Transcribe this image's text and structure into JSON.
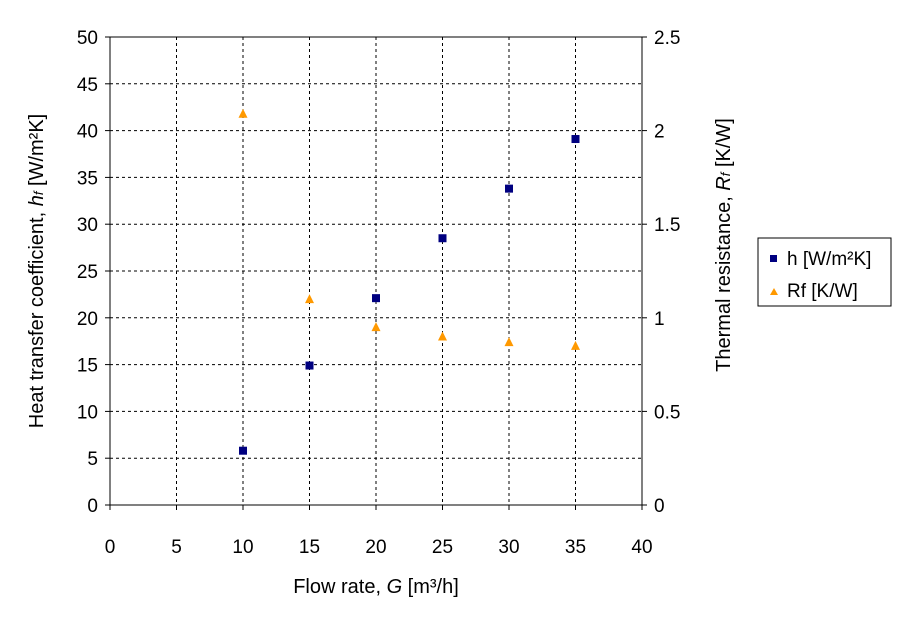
{
  "chart_data": {
    "type": "scatter",
    "x": [
      10,
      15,
      20,
      25,
      30,
      35
    ],
    "xlim": [
      0,
      40
    ],
    "xticks": [
      "0",
      "5",
      "10",
      "15",
      "20",
      "25",
      "30",
      "35",
      "40"
    ],
    "ylim_left": [
      0,
      50
    ],
    "yticks_left": [
      "0",
      "5",
      "10",
      "15",
      "20",
      "25",
      "30",
      "35",
      "40",
      "45",
      "50"
    ],
    "ylim_right": [
      0,
      2.5
    ],
    "yticks_right": [
      "0",
      "0.5",
      "1",
      "1.5",
      "2",
      "2.5"
    ],
    "grid": true,
    "legend_position": "right",
    "xlabel": {
      "prefix": "Flow rate, ",
      "symbol": "G",
      "unit": " [m³/h]"
    },
    "ylabel_left": {
      "prefix": "Heat transfer coefficient, ",
      "symbol": "h",
      "sub": "f",
      "unit": " [W/m²K]"
    },
    "ylabel_right": {
      "prefix": "Thermal resistance, ",
      "symbol": "R",
      "sub": "f",
      "unit": " [K/W]"
    },
    "series": [
      {
        "name": "h [W/m²K]",
        "axis": "left",
        "marker": "square",
        "color": "#000080",
        "values": [
          5.8,
          14.9,
          22.1,
          28.5,
          33.8,
          39.1
        ]
      },
      {
        "name": "Rf [K/W]",
        "axis": "right",
        "marker": "triangle",
        "color": "#FF9900",
        "values": [
          2.09,
          1.1,
          0.95,
          0.9,
          0.87,
          0.85
        ]
      }
    ]
  }
}
